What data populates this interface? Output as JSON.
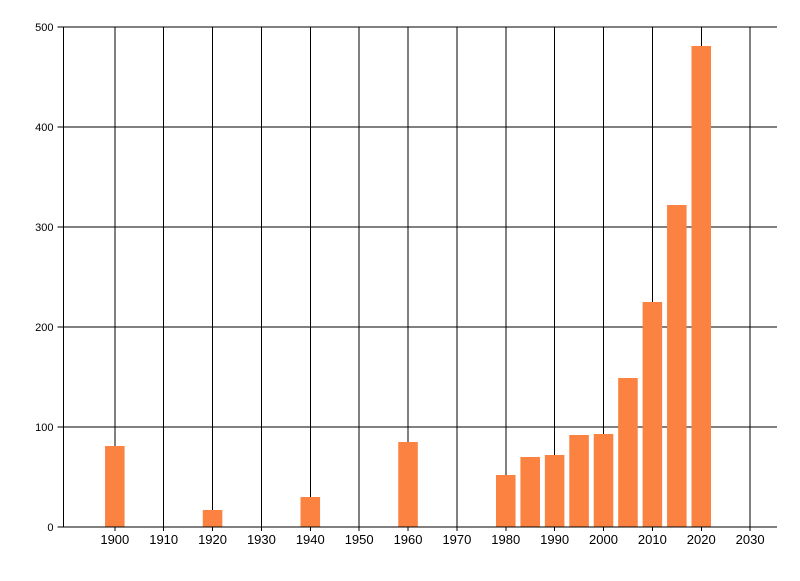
{
  "chart_data": {
    "type": "bar",
    "title": "",
    "xlabel": "",
    "ylabel": "",
    "x": [
      1900,
      1920,
      1940,
      1960,
      1980,
      1985,
      1990,
      1995,
      2000,
      2005,
      2010,
      2015,
      2020
    ],
    "values": [
      81,
      17,
      30,
      85,
      52,
      70,
      72,
      92,
      93,
      149,
      225,
      322,
      481
    ],
    "xticks": [
      1900,
      1910,
      1920,
      1930,
      1940,
      1950,
      1960,
      1970,
      1980,
      1990,
      2000,
      2010,
      2020,
      2030
    ],
    "yticks": [
      0,
      100,
      200,
      300,
      400,
      500
    ],
    "xlim": [
      1889.5,
      2035.5
    ],
    "ylim": [
      0,
      500
    ],
    "grid": true,
    "legend": false,
    "bar_width_years": 4,
    "bar_color": "#fb8241",
    "grid_color": "#000000",
    "axis_color": "#000000",
    "text_color": "#000000",
    "background_color": "#ffffff"
  }
}
